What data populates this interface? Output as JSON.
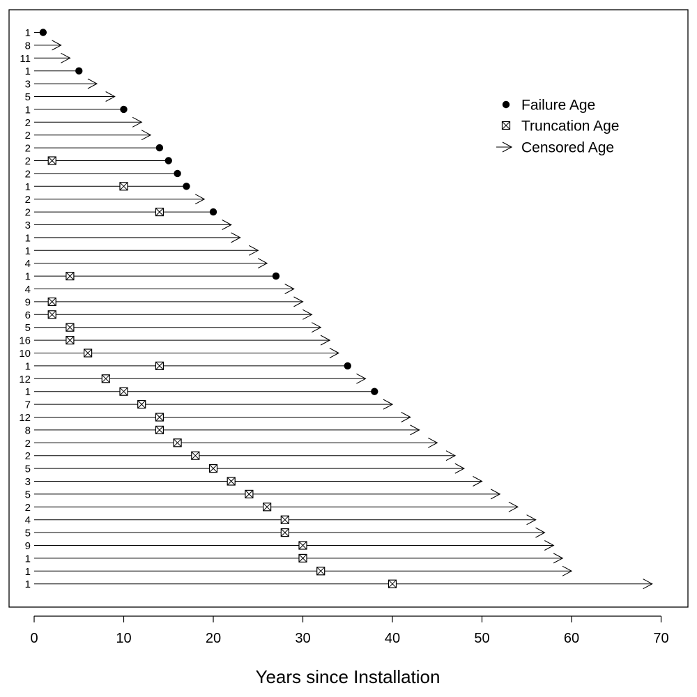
{
  "chart_data": {
    "type": "scatter",
    "title": "",
    "xlabel": "Years since Installation",
    "ylabel": "",
    "xlim": [
      0,
      70
    ],
    "xticks": [
      0,
      10,
      20,
      30,
      40,
      50,
      60,
      70
    ],
    "grid": false,
    "legend_position": "top-right",
    "legend": [
      {
        "name": "Failure Age",
        "marker": "filled-circle"
      },
      {
        "name": "Truncation Age",
        "marker": "boxed-x"
      },
      {
        "name": "Censored Age",
        "marker": "arrow"
      }
    ],
    "rows": [
      {
        "label": "1",
        "end": 1,
        "end_type": "failure",
        "truncation": null
      },
      {
        "label": "8",
        "end": 3,
        "end_type": "censored",
        "truncation": null
      },
      {
        "label": "11",
        "end": 4,
        "end_type": "censored",
        "truncation": null
      },
      {
        "label": "1",
        "end": 5,
        "end_type": "failure",
        "truncation": null
      },
      {
        "label": "3",
        "end": 7,
        "end_type": "censored",
        "truncation": null
      },
      {
        "label": "5",
        "end": 9,
        "end_type": "censored",
        "truncation": null
      },
      {
        "label": "1",
        "end": 10,
        "end_type": "failure",
        "truncation": null
      },
      {
        "label": "2",
        "end": 12,
        "end_type": "censored",
        "truncation": null
      },
      {
        "label": "2",
        "end": 13,
        "end_type": "censored",
        "truncation": null
      },
      {
        "label": "2",
        "end": 14,
        "end_type": "failure",
        "truncation": null
      },
      {
        "label": "2",
        "end": 15,
        "end_type": "failure",
        "truncation": 2
      },
      {
        "label": "2",
        "end": 16,
        "end_type": "failure",
        "truncation": null
      },
      {
        "label": "1",
        "end": 17,
        "end_type": "failure",
        "truncation": 10
      },
      {
        "label": "2",
        "end": 19,
        "end_type": "censored",
        "truncation": null
      },
      {
        "label": "2",
        "end": 20,
        "end_type": "failure",
        "truncation": 14
      },
      {
        "label": "3",
        "end": 22,
        "end_type": "censored",
        "truncation": null
      },
      {
        "label": "1",
        "end": 23,
        "end_type": "censored",
        "truncation": null
      },
      {
        "label": "1",
        "end": 25,
        "end_type": "censored",
        "truncation": null
      },
      {
        "label": "4",
        "end": 26,
        "end_type": "censored",
        "truncation": null
      },
      {
        "label": "1",
        "end": 27,
        "end_type": "failure",
        "truncation": 4
      },
      {
        "label": "4",
        "end": 29,
        "end_type": "censored",
        "truncation": null
      },
      {
        "label": "9",
        "end": 30,
        "end_type": "censored",
        "truncation": 2
      },
      {
        "label": "6",
        "end": 31,
        "end_type": "censored",
        "truncation": 2
      },
      {
        "label": "5",
        "end": 32,
        "end_type": "censored",
        "truncation": 4
      },
      {
        "label": "16",
        "end": 33,
        "end_type": "censored",
        "truncation": 4
      },
      {
        "label": "10",
        "end": 34,
        "end_type": "censored",
        "truncation": 6
      },
      {
        "label": "1",
        "end": 35,
        "end_type": "failure",
        "truncation": 14
      },
      {
        "label": "12",
        "end": 37,
        "end_type": "censored",
        "truncation": 8
      },
      {
        "label": "1",
        "end": 38,
        "end_type": "failure",
        "truncation": 10
      },
      {
        "label": "7",
        "end": 40,
        "end_type": "censored",
        "truncation": 12
      },
      {
        "label": "12",
        "end": 42,
        "end_type": "censored",
        "truncation": 14
      },
      {
        "label": "8",
        "end": 43,
        "end_type": "censored",
        "truncation": 14
      },
      {
        "label": "2",
        "end": 45,
        "end_type": "censored",
        "truncation": 16
      },
      {
        "label": "2",
        "end": 47,
        "end_type": "censored",
        "truncation": 18
      },
      {
        "label": "5",
        "end": 48,
        "end_type": "censored",
        "truncation": 20
      },
      {
        "label": "3",
        "end": 50,
        "end_type": "censored",
        "truncation": 22
      },
      {
        "label": "5",
        "end": 52,
        "end_type": "censored",
        "truncation": 24
      },
      {
        "label": "2",
        "end": 54,
        "end_type": "censored",
        "truncation": 26
      },
      {
        "label": "4",
        "end": 56,
        "end_type": "censored",
        "truncation": 28
      },
      {
        "label": "5",
        "end": 57,
        "end_type": "censored",
        "truncation": 28
      },
      {
        "label": "9",
        "end": 58,
        "end_type": "censored",
        "truncation": 30
      },
      {
        "label": "1",
        "end": 59,
        "end_type": "censored",
        "truncation": 30
      },
      {
        "label": "1",
        "end": 60,
        "end_type": "censored",
        "truncation": 32
      },
      {
        "label": "1",
        "end": 69,
        "end_type": "censored",
        "truncation": 40
      }
    ]
  }
}
